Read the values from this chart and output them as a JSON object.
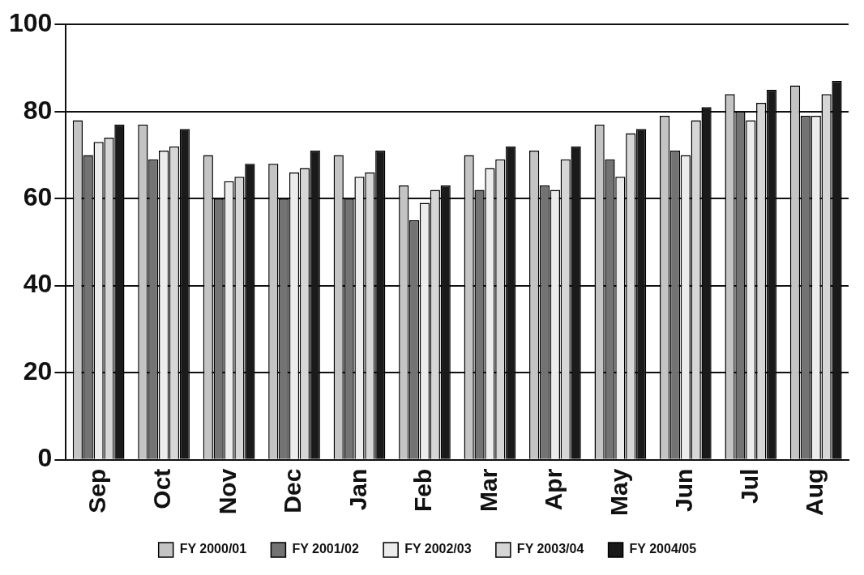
{
  "chart_data": {
    "type": "bar",
    "categories": [
      "Sep",
      "Oct",
      "Nov",
      "Dec",
      "Jan",
      "Feb",
      "Mar",
      "Apr",
      "May",
      "Jun",
      "Jul",
      "Aug"
    ],
    "series": [
      {
        "name": "FY 2000/01",
        "color": "#c4c4c4",
        "values": [
          78,
          77,
          70,
          68,
          70,
          63,
          70,
          71,
          77,
          79,
          84,
          86
        ]
      },
      {
        "name": "FY 2001/02",
        "color": "#737373",
        "values": [
          70,
          69,
          60,
          60,
          60,
          55,
          62,
          63,
          69,
          71,
          80,
          79
        ]
      },
      {
        "name": "FY 2002/03",
        "color": "#ececec",
        "values": [
          73,
          71,
          64,
          66,
          65,
          59,
          67,
          62,
          65,
          70,
          78,
          79
        ]
      },
      {
        "name": "FY 2003/04",
        "color": "#d6d6d6",
        "values": [
          74,
          72,
          65,
          67,
          66,
          62,
          69,
          69,
          75,
          78,
          82,
          84
        ]
      },
      {
        "name": "FY 2004/05",
        "color": "#1a1a1a",
        "values": [
          77,
          76,
          68,
          71,
          71,
          63,
          72,
          72,
          76,
          81,
          85,
          87
        ]
      }
    ],
    "ylim": [
      0,
      100
    ],
    "yticks": [
      0,
      20,
      40,
      60,
      80,
      100
    ],
    "grid": "y",
    "legend": "bottom"
  }
}
